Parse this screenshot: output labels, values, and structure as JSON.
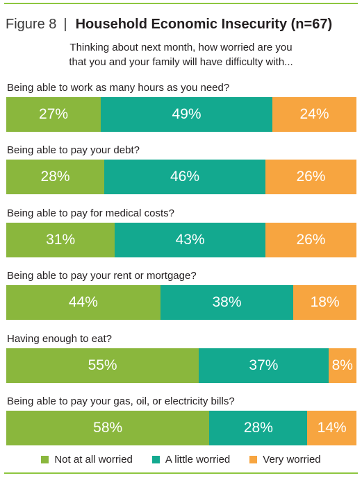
{
  "figure": {
    "label": "Figure 8",
    "separator": "|",
    "title": "Household Economic Insecurity (n=67)",
    "subtitle_line1": "Thinking about next month, how worried are you",
    "subtitle_line2": "that you and your family will have difficulty with..."
  },
  "chart_data": {
    "type": "bar",
    "orientation": "horizontal-stacked-100",
    "categories": [
      "Being able to work as many hours as you need?",
      "Being able to pay your debt?",
      "Being able to pay for medical costs?",
      "Being able to pay your rent or mortgage?",
      "Having enough to eat?",
      "Being able to pay your gas, oil, or electricity bills?"
    ],
    "series": [
      {
        "name": "Not at all worried",
        "color": "#8ab73d",
        "values": [
          27,
          28,
          31,
          44,
          55,
          58
        ],
        "labels": [
          "27%",
          "28%",
          "31%",
          "44%",
          "55%",
          "58%"
        ]
      },
      {
        "name": "A little worried",
        "color": "#13a98f",
        "values": [
          49,
          46,
          43,
          38,
          37,
          28
        ],
        "labels": [
          "49%",
          "46%",
          "43%",
          "38%",
          "37%",
          "28%"
        ]
      },
      {
        "name": "Very worried",
        "color": "#f7a540",
        "values": [
          24,
          26,
          26,
          18,
          8,
          14
        ],
        "labels": [
          "24%",
          "26%",
          "26%",
          "18%",
          "8%",
          "14%"
        ]
      }
    ],
    "xlim": [
      0,
      100
    ],
    "legend_position": "bottom",
    "grid": false
  }
}
